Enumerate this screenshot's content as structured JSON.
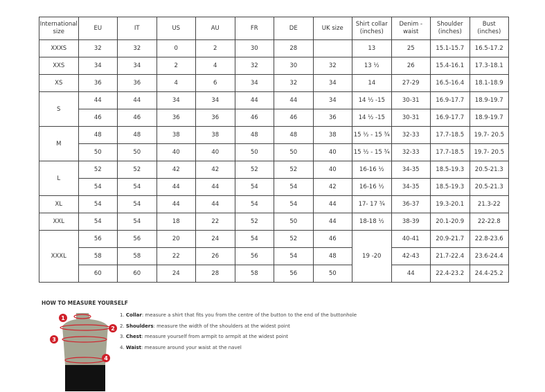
{
  "table": {
    "headers": [
      "International size",
      "EU",
      "IT",
      "US",
      "AU",
      "FR",
      "DE",
      "UK size",
      "Shirt collar (inches)",
      "Denim - waist",
      "Shoulder (inches)",
      "Bust (inches)"
    ],
    "groups": [
      {
        "size": "XXXS",
        "rows": [
          [
            "32",
            "32",
            "0",
            "2",
            "30",
            "28",
            "",
            "13",
            "25",
            "15.1-15.7",
            "16.5-17.2"
          ]
        ]
      },
      {
        "size": "XXS",
        "rows": [
          [
            "34",
            "34",
            "2",
            "4",
            "32",
            "30",
            "32",
            "13 ½",
            "26",
            "15.4-16.1",
            "17.3-18.1"
          ]
        ]
      },
      {
        "size": "XS",
        "rows": [
          [
            "36",
            "36",
            "4",
            "6",
            "34",
            "32",
            "34",
            "14",
            "27-29",
            "16.5-16.4",
            "18.1-18.9"
          ]
        ]
      },
      {
        "size": "S",
        "rows": [
          [
            "44",
            "44",
            "34",
            "34",
            "44",
            "44",
            "34",
            "14 ½ -15",
            "30-31",
            "16.9-17.7",
            "18.9-19.7"
          ],
          [
            "46",
            "46",
            "36",
            "36",
            "46",
            "46",
            "36",
            "14 ½ -15",
            "30-31",
            "16.9-17.7",
            "18.9-19.7"
          ]
        ]
      },
      {
        "size": "M",
        "rows": [
          [
            "48",
            "48",
            "38",
            "38",
            "48",
            "48",
            "38",
            "15 ½ - 15 ¾",
            "32-33",
            "17.7-18.5",
            "19.7- 20.5"
          ],
          [
            "50",
            "50",
            "40",
            "40",
            "50",
            "50",
            "40",
            "15 ½ - 15 ¾",
            "32-33",
            "17.7-18.5",
            "19.7- 20.5"
          ]
        ]
      },
      {
        "size": "L",
        "rows": [
          [
            "52",
            "52",
            "42",
            "42",
            "52",
            "52",
            "40",
            "16-16 ½",
            "34-35",
            "18.5-19.3",
            "20.5-21.3"
          ],
          [
            "54",
            "54",
            "44",
            "44",
            "54",
            "54",
            "42",
            "16-16 ½",
            "34-35",
            "18.5-19.3",
            "20.5-21.3"
          ]
        ]
      },
      {
        "size": "XL",
        "rows": [
          [
            "54",
            "54",
            "44",
            "44",
            "54",
            "54",
            "44",
            "17- 17 ¾",
            "36-37",
            "19.3-20.1",
            "21.3-22"
          ]
        ]
      },
      {
        "size": "XXL",
        "rows": [
          [
            "54",
            "54",
            "18",
            "22",
            "52",
            "50",
            "44",
            "18-18 ½",
            "38-39",
            "20.1-20.9",
            "22-22.8"
          ]
        ]
      },
      {
        "size": "XXXL",
        "collar": "19 -20",
        "rows": [
          [
            "56",
            "56",
            "20",
            "24",
            "54",
            "52",
            "46",
            null,
            "40-41",
            "20.9-21.7",
            "22.8-23.6"
          ],
          [
            "58",
            "58",
            "22",
            "26",
            "56",
            "54",
            "48",
            null,
            "42-43",
            "21.7-22.4",
            "23.6-24.4"
          ],
          [
            "60",
            "60",
            "24",
            "28",
            "58",
            "56",
            "50",
            null,
            "44",
            "22.4-23.2",
            "24.4-25.2"
          ]
        ]
      }
    ]
  },
  "howto": {
    "title": "HOW TO MEASURE YOURSELF",
    "items": [
      {
        "num": "1.",
        "term": "Collar",
        "text": ": measure a shirt that fits you from the centre of the button to the end of the buttonhole"
      },
      {
        "num": "2.",
        "term": "Shoulders",
        "text": ": measure the width of the shoulders at the widest point"
      },
      {
        "num": "3.",
        "term": "Chest",
        "text": ": measure yourself from armpit to armpit at the widest point"
      },
      {
        "num": "4.",
        "term": "Waist",
        "text": ": measure around your waist at the navel"
      }
    ]
  },
  "colors": {
    "marker": "#d0202a",
    "torso": "#a5a592"
  }
}
